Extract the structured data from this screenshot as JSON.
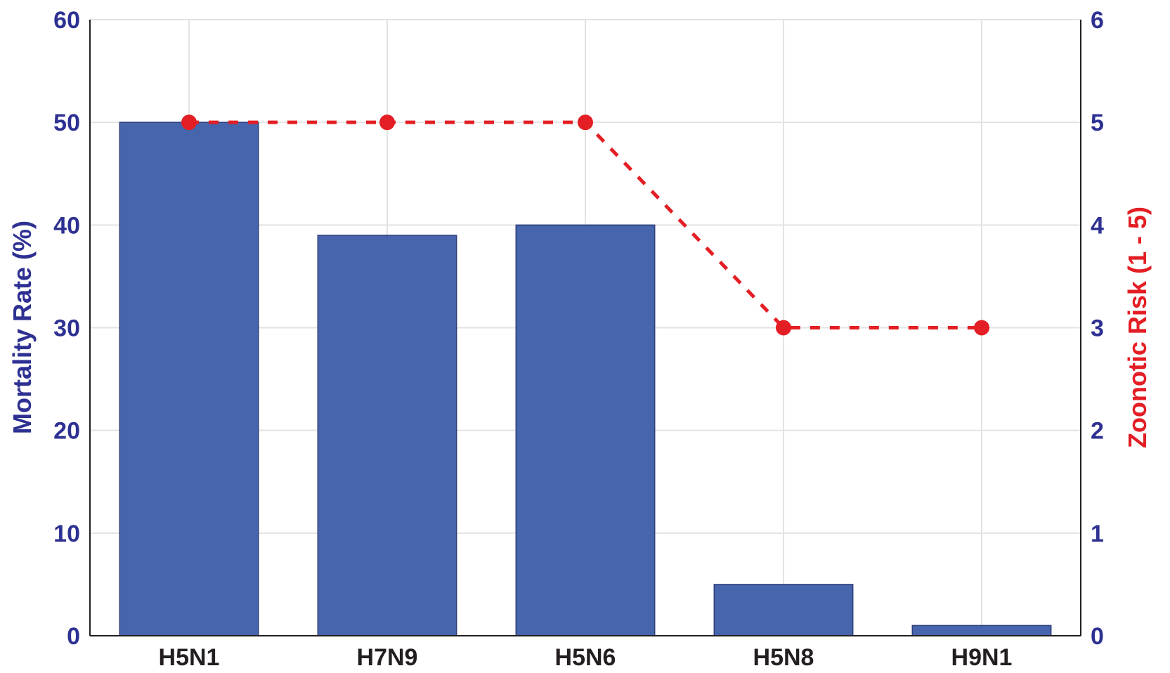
{
  "chart_data": {
    "type": "bar",
    "categories": [
      "H5N1",
      "H7N9",
      "H5N6",
      "H5N8",
      "H9N1"
    ],
    "series": [
      {
        "values": [
          50,
          39,
          40,
          5,
          1
        ],
        "axis": "left",
        "kind": "bar",
        "color": "#4665ad"
      },
      {
        "values": [
          5,
          5,
          5,
          3,
          3
        ],
        "axis": "right",
        "kind": "line",
        "line_style": "dotted",
        "color": "#e31e24"
      }
    ],
    "ylabel": "Mortality Rate (%)",
    "ylabel_right": "Zoonotic Risk (1 - 5)",
    "ylim": [
      0,
      60
    ],
    "ylim_right": [
      0,
      6
    ],
    "yticks": [
      "0",
      "10",
      "20",
      "30",
      "40",
      "50",
      "60"
    ],
    "yticks_right": [
      "0",
      "1",
      "2",
      "3",
      "4",
      "5",
      "6"
    ],
    "grid": true,
    "colors": {
      "axis_text_left": "#2e3192",
      "axis_text_right": "#2e3192",
      "ylabel_right": "#e31e24",
      "category_text": "#231f20",
      "grid": "#e3e3e3"
    }
  }
}
